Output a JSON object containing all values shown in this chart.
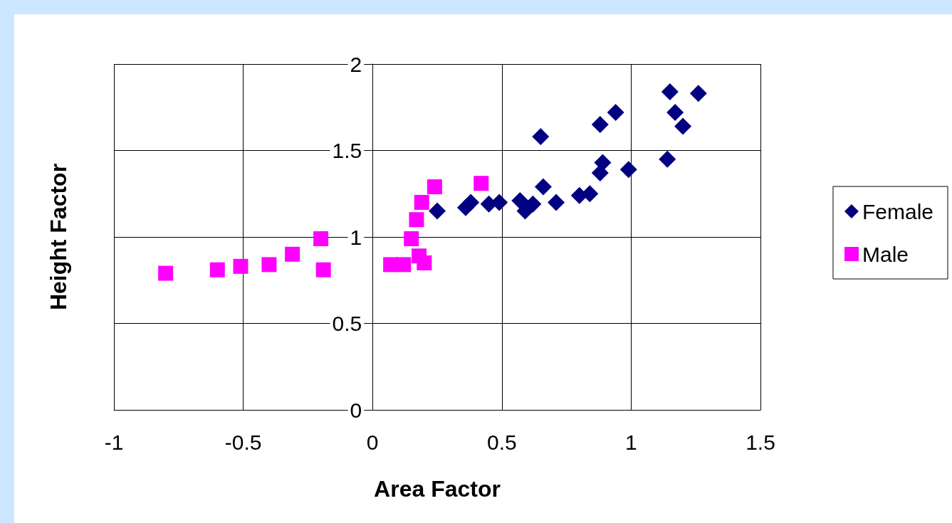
{
  "chart_data": {
    "type": "scatter",
    "xlabel": "Area Factor",
    "ylabel": "Height Factor",
    "xlim": [
      -1,
      1.5
    ],
    "xticks": [
      -1,
      -0.5,
      0,
      0.5,
      1,
      1.5
    ],
    "ylim": [
      0,
      2
    ],
    "yticks": [
      0,
      0.5,
      1,
      1.5,
      2
    ],
    "grid": true,
    "legend": "right",
    "series": [
      {
        "name": "Female",
        "color": "#000080",
        "marker": "diamond",
        "x": [
          0.25,
          0.36,
          0.38,
          0.45,
          0.49,
          0.57,
          0.59,
          0.62,
          0.65,
          0.66,
          0.71,
          0.8,
          0.84,
          0.88,
          0.89,
          0.88,
          0.94,
          0.99,
          1.14,
          1.15,
          1.17,
          1.2,
          1.26
        ],
        "values": [
          1.15,
          1.17,
          1.2,
          1.19,
          1.2,
          1.21,
          1.15,
          1.19,
          1.58,
          1.29,
          1.2,
          1.24,
          1.25,
          1.37,
          1.43,
          1.65,
          1.72,
          1.39,
          1.45,
          1.84,
          1.72,
          1.64,
          1.83
        ]
      },
      {
        "name": "Male",
        "color": "#ff00ff",
        "marker": "square",
        "x": [
          -0.8,
          -0.6,
          -0.51,
          -0.4,
          -0.31,
          -0.2,
          -0.19,
          0.07,
          0.12,
          0.15,
          0.17,
          0.19,
          0.24,
          0.18,
          0.2,
          0.42
        ],
        "values": [
          0.79,
          0.81,
          0.83,
          0.84,
          0.9,
          0.99,
          0.81,
          0.84,
          0.84,
          0.99,
          1.1,
          1.2,
          1.29,
          0.89,
          0.85,
          1.31
        ]
      }
    ]
  }
}
